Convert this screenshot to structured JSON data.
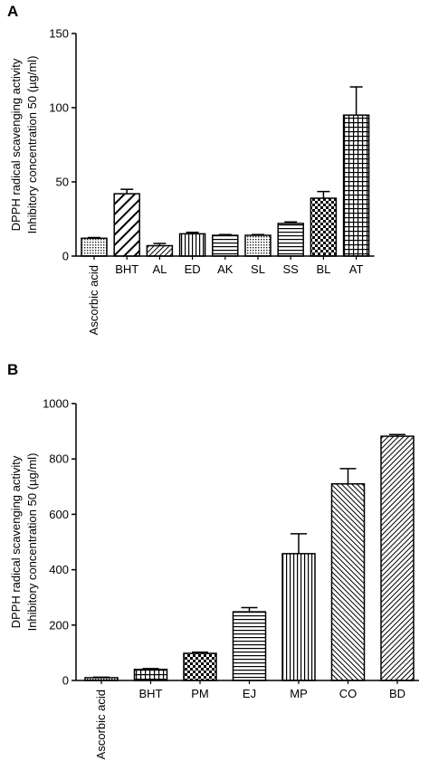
{
  "chart_data": [
    {
      "panel": "A",
      "type": "bar",
      "ylabel": [
        "DPPH radical scavenging activity",
        "Inhibitory concentration 50 (µg/ml)"
      ],
      "ylim": [
        0,
        150
      ],
      "yticks": [
        0,
        50,
        100,
        150
      ],
      "categories": [
        "Ascorbic acid",
        "BHT",
        "AL",
        "ED",
        "AK",
        "SL",
        "SS",
        "BL",
        "AT"
      ],
      "values": [
        12,
        42,
        7,
        15,
        14,
        14,
        22,
        39,
        95
      ],
      "errors": [
        0.5,
        3,
        1.5,
        1,
        0.5,
        0.5,
        1,
        4.5,
        19
      ],
      "patterns": [
        "dots",
        "diag-wide",
        "diag-fine",
        "vertical",
        "horizontal",
        "dots",
        "horizontal",
        "checker",
        "grid"
      ]
    },
    {
      "panel": "B",
      "type": "bar",
      "ylabel": [
        "DPPH radical scavenging activity",
        "Inhibitory concentration 50 (µg/ml)"
      ],
      "ylim": [
        0,
        1000
      ],
      "yticks": [
        0,
        200,
        400,
        600,
        800,
        1000
      ],
      "categories": [
        "Ascorbic acid",
        "BHT",
        "PM",
        "EJ",
        "MP",
        "CO",
        "BD"
      ],
      "values": [
        10,
        40,
        98,
        248,
        458,
        710,
        882
      ],
      "errors": [
        2,
        3,
        4,
        15,
        72,
        55,
        6
      ],
      "patterns": [
        "dots",
        "grid",
        "checker",
        "horizontal",
        "vertical",
        "diag-back",
        "diag-fine"
      ]
    }
  ]
}
